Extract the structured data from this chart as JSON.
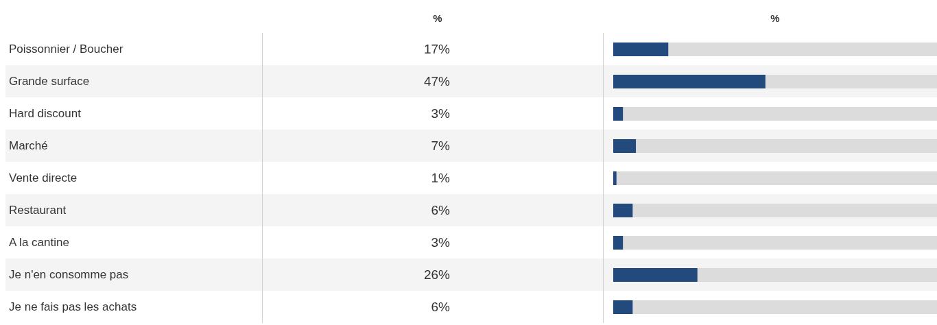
{
  "chart_data": {
    "type": "bar",
    "orientation": "horizontal",
    "xlabel": "%",
    "annotations": [
      "%"
    ],
    "categories": [
      "Poissonnier / Boucher",
      "Grande surface",
      "Hard discount",
      "Marché",
      "Vente directe",
      "Restaurant",
      "A la cantine",
      "Je n'en consomme pas",
      "Je ne fais pas les achats"
    ],
    "values": [
      17,
      47,
      3,
      7,
      1,
      6,
      3,
      26,
      6
    ],
    "value_labels": [
      "17%",
      "47%",
      "3%",
      "7%",
      "1%",
      "6%",
      "3%",
      "26%",
      "6%"
    ],
    "color": "#234a7c",
    "xlim": [
      0,
      100
    ],
    "tick_labels": "y"
  }
}
